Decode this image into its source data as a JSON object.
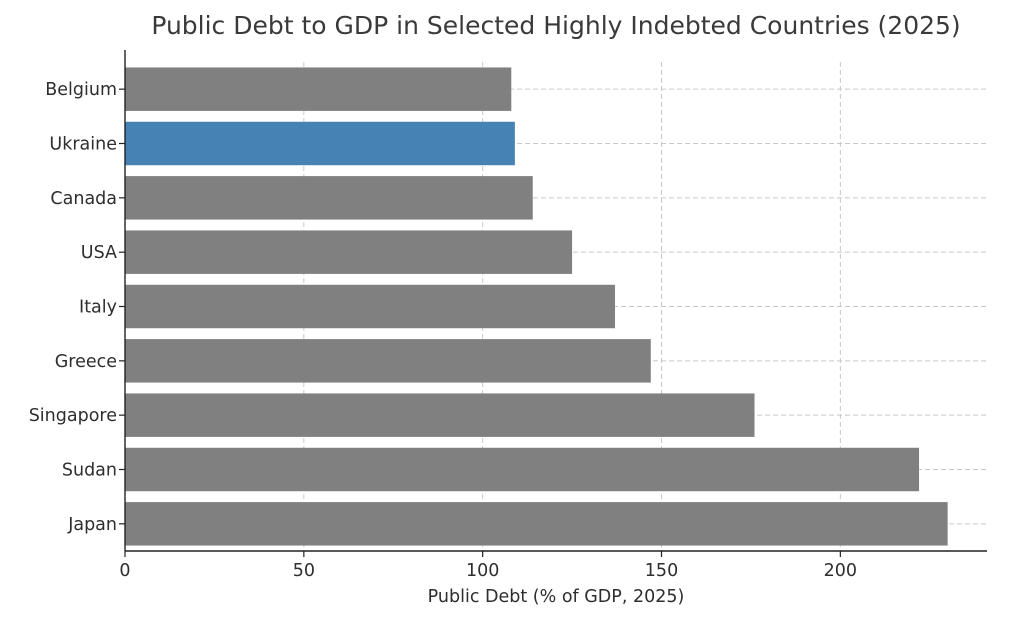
{
  "chart_data": {
    "type": "bar",
    "orientation": "horizontal",
    "title": "Public Debt to GDP in Selected Highly Indebted Countries (2025)",
    "xlabel": "Public Debt (% of GDP, 2025)",
    "ylabel": "",
    "categories": [
      "Belgium",
      "Ukraine",
      "Canada",
      "USA",
      "Italy",
      "Greece",
      "Singapore",
      "Sudan",
      "Japan"
    ],
    "values": [
      108,
      109,
      114,
      125,
      137,
      147,
      176,
      222,
      230
    ],
    "highlight": "Ukraine",
    "xlim": [
      0,
      241
    ],
    "xticks": [
      0,
      50,
      100,
      150,
      200
    ],
    "grid": true,
    "colors": {
      "bar": "#808080",
      "highlight": "#4682b4"
    }
  }
}
